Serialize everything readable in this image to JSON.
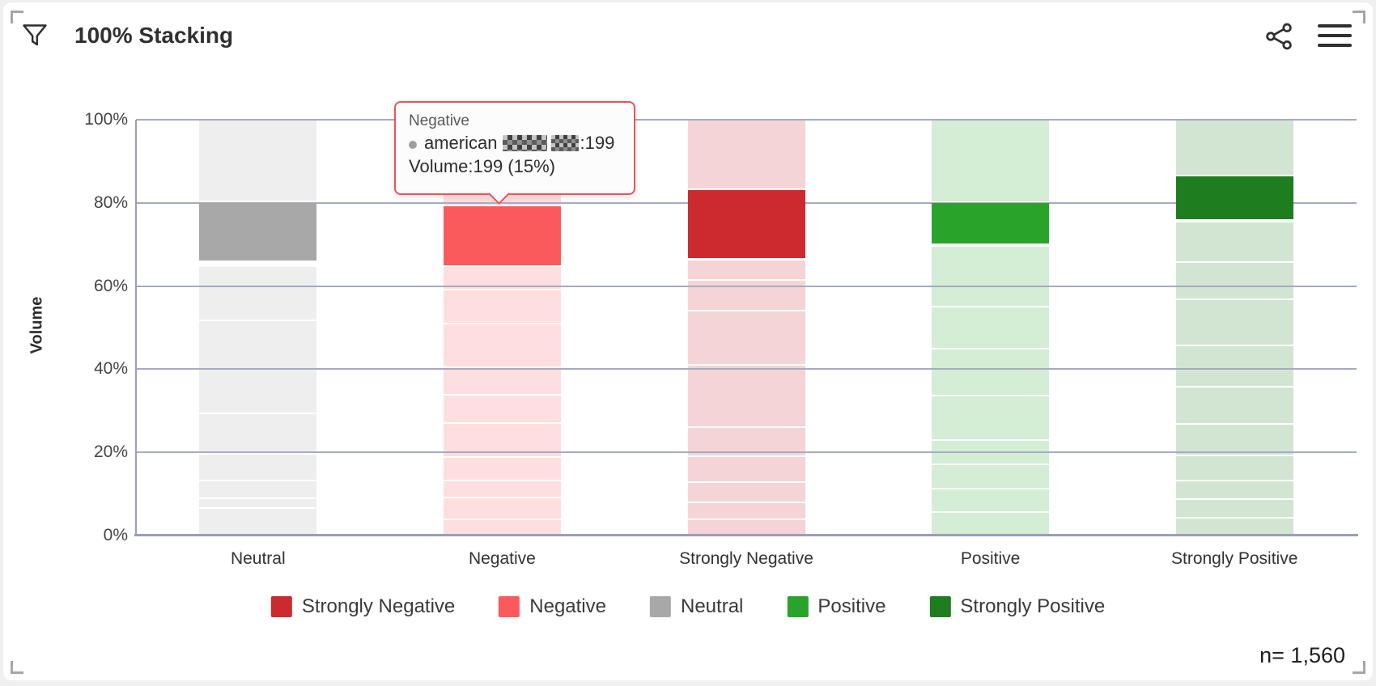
{
  "header": {
    "title": "100% Stacking"
  },
  "icons": {
    "filter": "funnel-filter-icon",
    "share": "share-network-icon",
    "menu": "hamburger-menu-icon",
    "tooltip_series_marker": "gray-dot"
  },
  "tooltip": {
    "category": "Negative",
    "series_prefix": "american",
    "series_redacted": "pixelated-blur",
    "series_suffix": ":199",
    "volume_line": "Volume:199 (15%)"
  },
  "footer": {
    "sample_size": "n= 1,560"
  },
  "colors": {
    "gridline": "#a6aac4",
    "axis": "#9a9eb9",
    "tooltip_border": "#ea5358",
    "card_bg": "#ffffff",
    "page_bg": "#f0f0f0"
  },
  "chart_data": {
    "type": "bar",
    "stacking": "percent",
    "orientation": "vertical",
    "title": "100% Stacking",
    "ylabel": "Volume",
    "ylim": [
      0,
      100
    ],
    "grid": true,
    "legend_position": "bottom",
    "sample_size": "n= 1,560",
    "yticks": [
      {
        "value": 0,
        "label": "0%"
      },
      {
        "value": 20,
        "label": "20%"
      },
      {
        "value": 40,
        "label": "40%"
      },
      {
        "value": 60,
        "label": "60%"
      },
      {
        "value": 80,
        "label": "80%"
      },
      {
        "value": 100,
        "label": "100%"
      }
    ],
    "categories": [
      "Neutral",
      "Negative",
      "Strongly Negative",
      "Positive",
      "Strongly Positive"
    ],
    "highlighted_series": {
      "name_visible_part": "american",
      "tooltip_category": "Negative",
      "volume": 199,
      "share_pct": 15
    },
    "bars": [
      {
        "category": "Neutral",
        "color": "#a8a8a8",
        "highlight_from_pct": 66.2,
        "highlight_to_pct": 80.5,
        "highlight_span_pct": 14.3,
        "segments": [
          {
            "from": 0,
            "to": 6.8
          },
          {
            "from": 6.8,
            "to": 9.1
          },
          {
            "from": 9.1,
            "to": 13.4
          },
          {
            "from": 13.4,
            "to": 19.8
          },
          {
            "from": 19.8,
            "to": 29.6
          },
          {
            "from": 29.6,
            "to": 40.3
          },
          {
            "from": 40.3,
            "to": 52
          },
          {
            "from": 52,
            "to": 64.9
          },
          {
            "from": 66.2,
            "to": 80.5,
            "highlight": true
          },
          {
            "from": 80.5,
            "to": 100
          }
        ]
      },
      {
        "category": "Negative",
        "color": "#fb5a5c",
        "highlight_from_pct": 65.0,
        "highlight_to_pct": 79.6,
        "highlight_span_pct": 15,
        "segments": [
          {
            "from": 0,
            "to": 4.1
          },
          {
            "from": 4.1,
            "to": 9.3
          },
          {
            "from": 9.3,
            "to": 13.4
          },
          {
            "from": 13.4,
            "to": 19.1
          },
          {
            "from": 19.1,
            "to": 27.2
          },
          {
            "from": 27.2,
            "to": 34
          },
          {
            "from": 34,
            "to": 40.7
          },
          {
            "from": 40.7,
            "to": 51.2
          },
          {
            "from": 51.2,
            "to": 59.3
          },
          {
            "from": 59.3,
            "to": 64.9
          },
          {
            "from": 65.0,
            "to": 79.6,
            "highlight": true
          },
          {
            "from": 79.6,
            "to": 100
          }
        ]
      },
      {
        "category": "Strongly Negative",
        "color": "#cd2a30",
        "highlight_from_pct": 66.7,
        "highlight_to_pct": 83.5,
        "highlight_span_pct": 16.8,
        "segments": [
          {
            "from": 0,
            "to": 4
          },
          {
            "from": 4,
            "to": 8.2
          },
          {
            "from": 8.2,
            "to": 13
          },
          {
            "from": 13,
            "to": 19.2
          },
          {
            "from": 19.2,
            "to": 26.3
          },
          {
            "from": 26.3,
            "to": 41.2
          },
          {
            "from": 41.2,
            "to": 54.2
          },
          {
            "from": 54.2,
            "to": 61.7
          },
          {
            "from": 61.7,
            "to": 66.5
          },
          {
            "from": 66.7,
            "to": 83.5,
            "highlight": true
          },
          {
            "from": 83.5,
            "to": 100
          }
        ]
      },
      {
        "category": "Positive",
        "color": "#2aa32b",
        "highlight_from_pct": 70.3,
        "highlight_to_pct": 80.3,
        "highlight_span_pct": 10,
        "segments": [
          {
            "from": 0,
            "to": 5.8
          },
          {
            "from": 5.8,
            "to": 11.4
          },
          {
            "from": 11.4,
            "to": 17.3
          },
          {
            "from": 17.3,
            "to": 23.1
          },
          {
            "from": 23.1,
            "to": 33.8
          },
          {
            "from": 33.8,
            "to": 45.1
          },
          {
            "from": 45.1,
            "to": 55.2
          },
          {
            "from": 55.2,
            "to": 69.8
          },
          {
            "from": 70.3,
            "to": 80.3,
            "highlight": true
          },
          {
            "from": 80.3,
            "to": 100
          }
        ]
      },
      {
        "category": "Strongly Positive",
        "color": "#1e7d1f",
        "highlight_from_pct": 76.1,
        "highlight_to_pct": 86.8,
        "highlight_span_pct": 10.7,
        "segments": [
          {
            "from": 0,
            "to": 4.5
          },
          {
            "from": 4.5,
            "to": 9
          },
          {
            "from": 9,
            "to": 13.5
          },
          {
            "from": 13.5,
            "to": 19.5
          },
          {
            "from": 19.5,
            "to": 27
          },
          {
            "from": 27,
            "to": 36
          },
          {
            "from": 36,
            "to": 46
          },
          {
            "from": 46,
            "to": 57
          },
          {
            "from": 57,
            "to": 66
          },
          {
            "from": 66,
            "to": 75.6
          },
          {
            "from": 76.1,
            "to": 86.8,
            "highlight": true
          },
          {
            "from": 86.8,
            "to": 100
          }
        ]
      }
    ],
    "legend": [
      {
        "label": "Strongly Negative",
        "color": "#cd2a30"
      },
      {
        "label": "Negative",
        "color": "#fb5a5c"
      },
      {
        "label": "Neutral",
        "color": "#a8a8a8"
      },
      {
        "label": "Positive",
        "color": "#2aa32b"
      },
      {
        "label": "Strongly Positive",
        "color": "#1e7d1f"
      }
    ]
  }
}
